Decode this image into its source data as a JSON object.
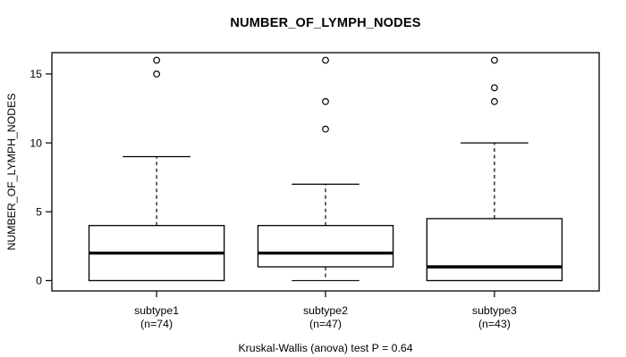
{
  "chart_data": {
    "type": "boxplot",
    "title": "NUMBER_OF_LYMPH_NODES",
    "ylabel": "NUMBER_OF_LYMPH_NODES",
    "xlabel": "",
    "caption": "Kruskal-Wallis (anova) test P = 0.64",
    "yticks": [
      0,
      5,
      10,
      15
    ],
    "ylim": [
      -0.75,
      16.55
    ],
    "grid": false,
    "legend": "none",
    "groups": [
      {
        "label": "subtype1",
        "sublabel": "(n=74)",
        "n": 74,
        "q1": 0,
        "median": 2,
        "q3": 4,
        "whisker_low": 0,
        "whisker_high": 9,
        "outliers": [
          15,
          16
        ]
      },
      {
        "label": "subtype2",
        "sublabel": "(n=47)",
        "n": 47,
        "q1": 1,
        "median": 2,
        "q3": 4,
        "whisker_low": 0,
        "whisker_high": 7,
        "outliers": [
          11,
          13,
          16
        ]
      },
      {
        "label": "subtype3",
        "sublabel": "(n=43)",
        "n": 43,
        "q1": 0,
        "median": 1,
        "q3": 4.5,
        "whisker_low": 0,
        "whisker_high": 10,
        "outliers": [
          13,
          14,
          16
        ]
      }
    ],
    "colors": {
      "stroke": "#000000",
      "box_fill": "#ffffff",
      "background": "#ffffff"
    }
  }
}
